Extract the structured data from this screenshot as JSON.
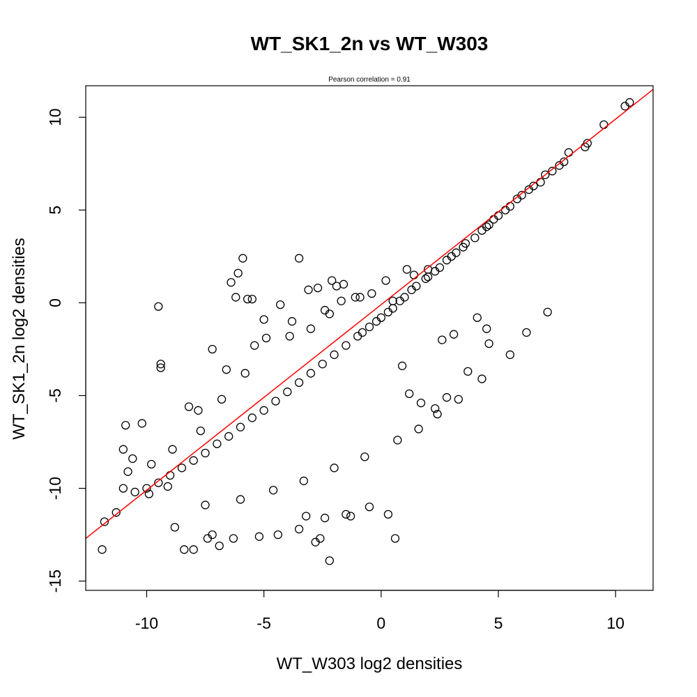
{
  "chart_data": {
    "type": "scatter",
    "title": "WT_SK1_2n vs WT_W303",
    "subtitle": "Pearson correlation =  0.91",
    "xlabel": "WT_W303 log2 densities",
    "ylabel": "WT_SK1_2n log2 densities",
    "xlim": [
      -12.6,
      11.6
    ],
    "ylim": [
      -15.5,
      11.7
    ],
    "x_ticks": [
      -10,
      -5,
      0,
      5,
      10
    ],
    "x_tick_labels": [
      "-10",
      "-5",
      "0",
      "5",
      "10"
    ],
    "y_ticks": [
      -15,
      -10,
      -5,
      0,
      5,
      10
    ],
    "y_tick_labels": [
      "-15",
      "-10",
      "-5",
      "0",
      "5",
      "10"
    ],
    "grid": false,
    "legend": "none",
    "point_marker": "open-circle",
    "point_color": "#000000",
    "fit_line": {
      "color": "#ff0000",
      "slope": 1.0,
      "intercept": -0.1
    },
    "points": {
      "x": [
        10.6,
        10.4,
        9.5,
        8.8,
        8.7,
        8.0,
        7.8,
        7.6,
        7.3,
        7.0,
        6.8,
        6.5,
        6.3,
        6.0,
        5.8,
        5.5,
        5.3,
        5.0,
        4.8,
        4.6,
        4.5,
        4.3,
        4.0,
        3.6,
        3.5,
        3.2,
        3.0,
        2.8,
        2.5,
        2.3,
        2.0,
        1.9,
        1.5,
        1.3,
        1.0,
        0.8,
        0.5,
        0.3,
        0.0,
        -0.2,
        -0.5,
        -0.8,
        -1.0,
        -1.5,
        -2.0,
        -2.5,
        -3.0,
        -3.5,
        -4.0,
        -4.5,
        -5.0,
        -5.5,
        -6.0,
        -6.5,
        -7.0,
        -7.5,
        -8.0,
        -8.5,
        -9.0,
        -9.5,
        -10.0,
        -10.5,
        -11.0,
        -11.8,
        -11.9,
        -11.3,
        -11.0,
        -10.9,
        -10.2,
        -9.9,
        -9.5,
        -9.4,
        -8.8,
        -8.4,
        -8.0,
        -7.4,
        -7.2,
        -6.9,
        -6.3,
        -6.1,
        -5.9,
        -5.2,
        -4.4,
        -3.5,
        -3.2,
        -2.8,
        -2.6,
        -2.4,
        -2.2,
        -1.5,
        -1.3,
        -0.5,
        0.3,
        0.6,
        0.9,
        1.2,
        1.7,
        2.3,
        2.8,
        4.5,
        4.6,
        3.7,
        -5.7,
        -5.5,
        -6.2,
        -9.4,
        -7.2,
        -3.5,
        -2.1,
        -6.4,
        -3.1,
        -1.9,
        -1.6,
        -2.7,
        -4.3,
        -5.0,
        -8.2,
        -7.8,
        -6.6,
        -5.4,
        -4.9,
        -3.8,
        -2.4,
        -1.1,
        -0.4,
        0.5,
        1.1,
        1.4,
        2.0,
        -9.8,
        -10.6,
        -8.9,
        -7.7,
        -6.8,
        -5.8,
        -3.9,
        -3.0,
        -2.2,
        -1.7,
        -0.9,
        0.2,
        2.6,
        3.1,
        4.1,
        -10.8,
        -9.1,
        -7.5,
        -6.0,
        -4.6,
        -3.3,
        -2.0,
        -0.7,
        0.7,
        1.6,
        2.4,
        3.3,
        4.3,
        5.5,
        6.2,
        7.1
      ],
      "y": [
        10.8,
        10.6,
        9.6,
        8.6,
        8.4,
        8.1,
        7.6,
        7.4,
        7.1,
        6.9,
        6.5,
        6.3,
        6.1,
        5.8,
        5.6,
        5.2,
        5.0,
        4.7,
        4.5,
        4.2,
        4.1,
        3.9,
        3.5,
        3.2,
        3.0,
        2.7,
        2.5,
        2.3,
        1.9,
        1.7,
        1.4,
        1.3,
        0.9,
        0.7,
        0.3,
        0.1,
        -0.3,
        -0.5,
        -0.8,
        -1.0,
        -1.3,
        -1.6,
        -1.8,
        -2.3,
        -2.8,
        -3.3,
        -3.8,
        -4.3,
        -4.8,
        -5.3,
        -5.8,
        -6.2,
        -6.7,
        -7.2,
        -7.6,
        -8.1,
        -8.5,
        -8.9,
        -9.3,
        -9.7,
        -10.0,
        -10.2,
        -10.0,
        -11.8,
        -13.3,
        -11.3,
        -7.9,
        -6.6,
        -6.5,
        -10.3,
        -0.2,
        -3.5,
        -12.1,
        -13.3,
        -13.3,
        -12.7,
        -12.5,
        -13.1,
        -12.7,
        1.6,
        2.4,
        -12.6,
        -12.5,
        -12.2,
        -11.5,
        -12.9,
        -12.7,
        -11.6,
        -13.9,
        -11.4,
        -11.5,
        -11.0,
        -11.4,
        -12.7,
        -3.4,
        -4.9,
        -5.4,
        -5.7,
        -5.1,
        -1.4,
        -2.2,
        -3.7,
        0.2,
        0.2,
        0.3,
        -3.3,
        -2.5,
        2.4,
        1.2,
        1.1,
        0.7,
        0.9,
        1.0,
        0.8,
        -0.1,
        -0.9,
        -5.6,
        -5.8,
        -3.6,
        -2.3,
        -1.9,
        -1.0,
        -0.4,
        0.3,
        0.5,
        0.1,
        1.8,
        1.5,
        1.8,
        -8.7,
        -8.4,
        -7.9,
        -6.9,
        -5.2,
        -3.8,
        -1.8,
        -1.4,
        -0.6,
        0.1,
        0.3,
        1.2,
        -2.0,
        -1.7,
        -0.8,
        -9.1,
        -9.9,
        -10.9,
        -10.6,
        -10.1,
        -9.6,
        -8.9,
        -8.3,
        -7.4,
        -6.8,
        -6.0,
        -5.2,
        -4.1,
        -2.8,
        -1.6,
        -0.5
      ]
    }
  }
}
